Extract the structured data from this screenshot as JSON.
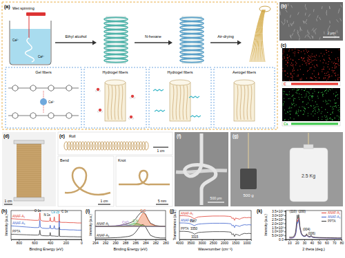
{
  "panels": {
    "a": {
      "label": "(a)",
      "process": "Wet spinning",
      "ion": "Ca²⁺",
      "arrows": [
        "Ethyl alcohol",
        "N-hexane",
        "Air-drying"
      ],
      "stages": [
        "Gel fibers",
        "Hydrogel fibers",
        "Hydrogel fibers",
        "Aerogel fibers"
      ]
    },
    "b": {
      "label": "(b)",
      "scale_bar": "2 μm"
    },
    "c": {
      "label": "(c)",
      "maps": [
        "C",
        "Ca"
      ]
    },
    "d": {
      "label": "(d)",
      "scale_bar": "1 cm"
    },
    "e": {
      "label": "(e)",
      "photos": [
        {
          "title": "Roll",
          "scale_bar": "1 cm"
        },
        {
          "title": "Bend",
          "scale_bar": "1 cm"
        },
        {
          "title": "Knot",
          "scale_bar": "5 mm"
        }
      ]
    },
    "f": {
      "label": "(f)",
      "scale_bar": "500 μm"
    },
    "g": {
      "label": "(g)",
      "weights": [
        "500 g",
        "2.5 Kg"
      ]
    }
  },
  "chart_data": [
    {
      "label": "(h)",
      "type": "line",
      "x_label": "Binding Energy (eV)",
      "y_label": "Intensity (a.u.)",
      "xlim": [
        900,
        0
      ],
      "xticks": [
        800,
        600,
        400,
        200,
        0
      ],
      "ylim": [
        0,
        100
      ],
      "tick_labels": "x",
      "x": [
        900,
        850,
        800,
        750,
        700,
        650,
        600,
        560,
        540,
        531,
        525,
        500,
        450,
        420,
        405,
        399,
        393,
        370,
        355,
        347,
        340,
        320,
        295,
        288,
        284,
        280,
        250,
        200,
        150,
        100,
        50,
        0
      ],
      "series": [
        {
          "name": "ANAF-A₁",
          "color": "#e03c31",
          "values": [
            72,
            71,
            70,
            69,
            68,
            67,
            66,
            66,
            67,
            92,
            68,
            64,
            63,
            63,
            64,
            76,
            63,
            62,
            63,
            78,
            62,
            61,
            61,
            63,
            88,
            60,
            59,
            59,
            58,
            58,
            57,
            57
          ]
        },
        {
          "name": "ANAF-A₃",
          "color": "#3a5fcd",
          "values": [
            47,
            46,
            45,
            44,
            43,
            42,
            41,
            41,
            42,
            66,
            43,
            39,
            38,
            38,
            39,
            49,
            38,
            37,
            38,
            48,
            37,
            36,
            36,
            38,
            64,
            35,
            34,
            34,
            33,
            33,
            32,
            32
          ]
        },
        {
          "name": "PPTA",
          "color": "#333333",
          "values": [
            18,
            17.5,
            17,
            16.5,
            16,
            15.5,
            15,
            15,
            16,
            32,
            16,
            13,
            12.5,
            12.5,
            13,
            24,
            12.5,
            12,
            12,
            12,
            11.5,
            11,
            11,
            12.5,
            42,
            10.5,
            10,
            10,
            9.5,
            9.5,
            9,
            9
          ]
        }
      ],
      "annotations": [
        {
          "text": "O 1s",
          "x": 560,
          "y": 96
        },
        {
          "text": "N 1s",
          "x": 440,
          "y": 82
        },
        {
          "text": "Ca 2p",
          "x": 335,
          "y": 90,
          "color": "#1fa0c8"
        },
        {
          "text": "C 1s",
          "x": 215,
          "y": 92
        }
      ]
    },
    {
      "label": "(i)",
      "type": "line",
      "x_label": "Binding Energy (eV)",
      "y_label": "Intensity (a.u.)",
      "xlim": [
        294,
        280
      ],
      "xticks": [
        294,
        292,
        290,
        288,
        286,
        284,
        282,
        280
      ],
      "ylim": [
        0,
        100
      ],
      "tick_labels": "x",
      "x": [
        294,
        293,
        292,
        291,
        290,
        289.5,
        289,
        288.5,
        288,
        287.5,
        287,
        286.5,
        286,
        285.5,
        285,
        284.5,
        284,
        283.5,
        283,
        282,
        281,
        280
      ],
      "series": [
        {
          "name": "ANAF-A₁",
          "color": "#222222",
          "type": "line",
          "values": [
            46,
            46,
            46,
            46.5,
            47,
            48,
            49,
            51,
            53,
            55,
            58,
            62,
            70,
            82,
            92,
            96,
            88,
            70,
            56,
            48,
            46,
            45
          ]
        },
        {
          "name": "ANAF-A₃",
          "color": "#222222",
          "type": "line",
          "values": [
            5,
            5,
            5,
            5.5,
            6,
            6.5,
            7,
            8,
            9,
            10,
            12,
            16,
            24,
            36,
            48,
            52,
            44,
            28,
            14,
            7,
            5,
            5
          ]
        },
        {
          "name": "C-C",
          "color": "#e8581c",
          "type": "area",
          "values": [
            45,
            45,
            45,
            45,
            45,
            45,
            45,
            45,
            45,
            45,
            45.5,
            47,
            52,
            63,
            78,
            92,
            86,
            68,
            54,
            47,
            45,
            45
          ]
        },
        {
          "name": "C-N",
          "color": "#2ca02c",
          "type": "area",
          "values": [
            45,
            45,
            45,
            45,
            45,
            45,
            45.5,
            46,
            47,
            49,
            52,
            55,
            57,
            55,
            51,
            48,
            46,
            45,
            45,
            45,
            45,
            45
          ]
        },
        {
          "name": "C=O",
          "color": "#9467bd",
          "type": "area",
          "values": [
            45,
            45,
            45,
            45.5,
            46.5,
            48,
            49.5,
            50.5,
            51,
            50,
            48.5,
            47,
            46,
            45.5,
            45,
            45,
            45,
            45,
            45,
            45,
            45,
            45
          ]
        }
      ]
    },
    {
      "label": "(j)",
      "type": "line",
      "x_label": "Wavenumber (cm⁻¹)",
      "y_label": "Transmittance (a.u.)",
      "xlim": [
        4000,
        800
      ],
      "xticks": [
        4000,
        3500,
        3000,
        2500,
        2000,
        1500,
        1000
      ],
      "ylim": [
        0,
        100
      ],
      "tick_labels": "x",
      "x": [
        4000,
        3800,
        3600,
        3500,
        3400,
        3330,
        3250,
        3150,
        3000,
        2800,
        2500,
        2200,
        2000,
        1800,
        1700,
        1650,
        1600,
        1540,
        1500,
        1400,
        1310,
        1250,
        1100,
        1000,
        900,
        800
      ],
      "series": [
        {
          "name": "ANAF-A₁",
          "color": "#e03c31",
          "values": [
            82,
            82,
            81,
            79,
            74,
            72,
            75,
            78,
            79,
            80,
            81,
            81,
            81,
            80,
            79,
            72,
            75,
            66,
            74,
            72,
            70,
            73,
            76,
            75,
            76,
            75
          ]
        },
        {
          "name": "ANAF-A₃",
          "color": "#3a5fcd",
          "values": [
            57,
            57,
            56,
            54,
            50,
            48,
            51,
            53,
            54,
            55,
            56,
            56,
            56,
            55,
            54,
            47,
            50,
            41,
            49,
            47,
            45,
            48,
            51,
            50,
            51,
            50
          ]
        },
        {
          "name": "PPTA",
          "color": "#333333",
          "values": [
            28,
            28,
            27,
            25,
            22,
            18,
            21,
            24,
            25,
            26,
            27,
            27,
            27,
            26,
            25,
            16,
            20,
            10,
            18,
            16,
            13,
            17,
            21,
            20,
            21,
            20
          ]
        }
      ],
      "annotations": [
        {
          "text": "3387",
          "x": 3387,
          "y": 60
        },
        {
          "text": "3350",
          "x": 3350,
          "y": 34
        },
        {
          "text": "3315",
          "x": 3315,
          "y": 5
        }
      ]
    },
    {
      "label": "(k)",
      "type": "line",
      "x_label": "2 theta (deg.)",
      "y_label": "Intensity (a.u.)",
      "xlim": [
        5,
        80
      ],
      "xticks": [
        10,
        20,
        30,
        40,
        50,
        60,
        70,
        80
      ],
      "ylim": [
        0,
        3600
      ],
      "yticks": [
        {
          "value": 0,
          "label": "0.0"
        },
        {
          "value": 500,
          "label": "5.0×10²"
        },
        {
          "value": 1000,
          "label": "1.0×10³"
        },
        {
          "value": 1500,
          "label": "1.5×10³"
        },
        {
          "value": 2000,
          "label": "2.0×10³"
        },
        {
          "value": 2500,
          "label": "2.5×10³"
        },
        {
          "value": 3000,
          "label": "3.0×10³"
        },
        {
          "value": 3500,
          "label": "3.5×10³"
        }
      ],
      "legend": "upper right",
      "x": [
        10,
        12,
        14,
        16,
        18,
        19,
        20,
        20.5,
        21,
        22,
        22.5,
        23,
        24,
        26,
        28,
        30,
        32,
        33,
        34,
        36,
        38,
        39,
        40,
        42,
        45,
        50,
        55,
        60,
        65,
        70,
        75,
        80
      ],
      "series": [
        {
          "name": "ANAF-A₁",
          "color": "#e03c31",
          "values": [
            200,
            180,
            190,
            260,
            550,
            1000,
            1900,
            2500,
            2200,
            2400,
            2700,
            2500,
            1500,
            700,
            450,
            380,
            420,
            560,
            450,
            320,
            300,
            420,
            320,
            260,
            220,
            200,
            190,
            180,
            170,
            160,
            150,
            150
          ]
        },
        {
          "name": "ANAF-A₃",
          "color": "#3a5fcd",
          "values": [
            180,
            170,
            180,
            240,
            500,
            900,
            1700,
            2200,
            2000,
            2200,
            2500,
            2300,
            1400,
            650,
            420,
            350,
            400,
            520,
            420,
            300,
            280,
            400,
            300,
            240,
            210,
            190,
            180,
            170,
            160,
            150,
            140,
            140
          ]
        },
        {
          "name": "PPTA",
          "color": "#333333",
          "values": [
            300,
            280,
            300,
            380,
            800,
            1500,
            2400,
            3050,
            2600,
            2700,
            3100,
            2800,
            1700,
            800,
            500,
            420,
            480,
            700,
            520,
            380,
            360,
            550,
            380,
            300,
            260,
            240,
            230,
            220,
            210,
            200,
            190,
            190
          ]
        }
      ],
      "annotations": [
        {
          "text": "(110)",
          "x": 15,
          "y": 3350
        },
        {
          "text": "(200)",
          "x": 27,
          "y": 3350
        },
        {
          "text": "(004)",
          "x": 33,
          "y": 1100
        },
        {
          "text": "(006)",
          "x": 40,
          "y": 620
        }
      ]
    }
  ]
}
